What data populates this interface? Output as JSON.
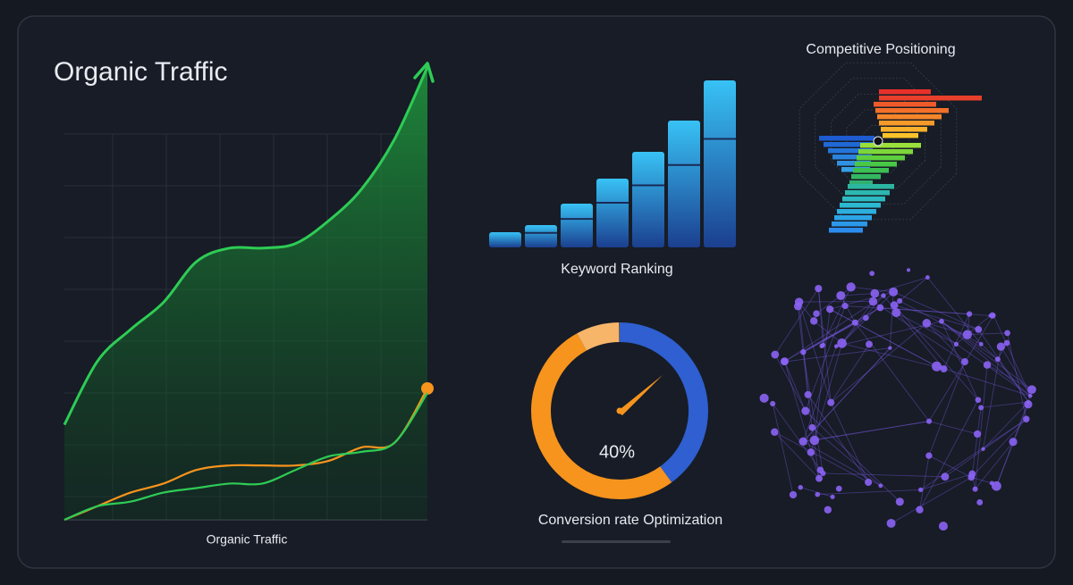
{
  "chart_data": [
    {
      "type": "line",
      "title": "Organic Traffic",
      "caption": "Organic Traffic",
      "categories": [
        null,
        null,
        null,
        null,
        null,
        null,
        null,
        null,
        null,
        null,
        null,
        null
      ],
      "series": [
        {
          "color": "#2ecc55",
          "values": [
            21,
            35,
            42,
            48,
            57,
            60,
            60,
            61,
            66,
            73,
            84,
            100
          ]
        },
        {
          "color": "#f7941d",
          "values": [
            0,
            3,
            6,
            8,
            11,
            12,
            12,
            12,
            13,
            16,
            17,
            29
          ]
        },
        {
          "color": "#2ecc55",
          "values": [
            0,
            3,
            4,
            6,
            7,
            8,
            8,
            11,
            14,
            15,
            17,
            28
          ]
        }
      ],
      "ylim": [
        0,
        100
      ],
      "grid": true
    },
    {
      "type": "bar",
      "caption": "Keyword Ranking",
      "categories": [
        null,
        null,
        null,
        null,
        null,
        null,
        null
      ],
      "values": [
        17,
        25,
        49,
        77,
        107,
        142,
        187
      ],
      "color": "#29a8ec",
      "ylim": [
        0,
        200
      ]
    },
    {
      "type": "gauge",
      "caption": "Conversion rate Optimization",
      "value": 40,
      "value_label": "40%",
      "ylim": [
        0,
        100
      ],
      "color": "#2f5fd0"
    }
  ],
  "competitive": {
    "title": "Competitive Positioning"
  }
}
